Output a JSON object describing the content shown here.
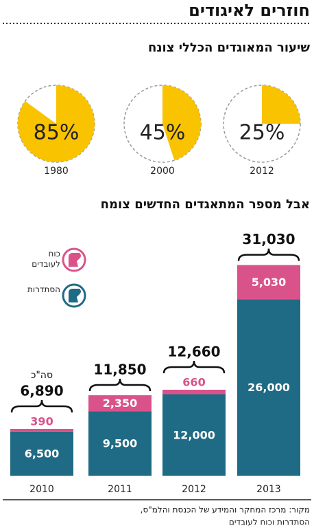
{
  "title": "חוזרים לאיגודים",
  "chart_data": [
    {
      "type": "pie",
      "title": "שיעור המאוגדים הכללי צונח",
      "label": "1980",
      "values": [
        85
      ],
      "value_labels": [
        "85%"
      ],
      "color": "#f9c300"
    },
    {
      "type": "pie",
      "label": "2000",
      "values": [
        45
      ],
      "value_labels": [
        "45%"
      ],
      "color": "#f9c300"
    },
    {
      "type": "pie",
      "label": "2012",
      "values": [
        25
      ],
      "value_labels": [
        "25%"
      ],
      "color": "#f9c300"
    },
    {
      "type": "stacked-bar",
      "title": "אבל מספר המתאגדים החדשים צומח",
      "categories": [
        "2010",
        "2011",
        "2012",
        "2013"
      ],
      "series": [
        {
          "name": "הסתדרות",
          "color": "#1f6a84",
          "values": [
            6500,
            9500,
            12000,
            26000
          ],
          "value_labels": [
            "6,500",
            "9,500",
            "12,000",
            "26,000"
          ]
        },
        {
          "name": "כוח לעובדים",
          "color": "#d9538a",
          "values": [
            390,
            2350,
            660,
            5030
          ],
          "value_labels": [
            "390",
            "2,350",
            "660",
            "5,030"
          ]
        }
      ],
      "total_prefix": "סה\"כ",
      "totals": [
        6890,
        11850,
        12660,
        31030
      ],
      "total_labels": [
        "6,890",
        "11,850",
        "12,660",
        "31,030"
      ],
      "ylim": [
        0,
        32000
      ]
    }
  ],
  "source": [
    "מקור: מרכז המחקר והמידע של הכנסת והלמ\"ס,",
    "הסתדרות וכוח לעובדים"
  ]
}
